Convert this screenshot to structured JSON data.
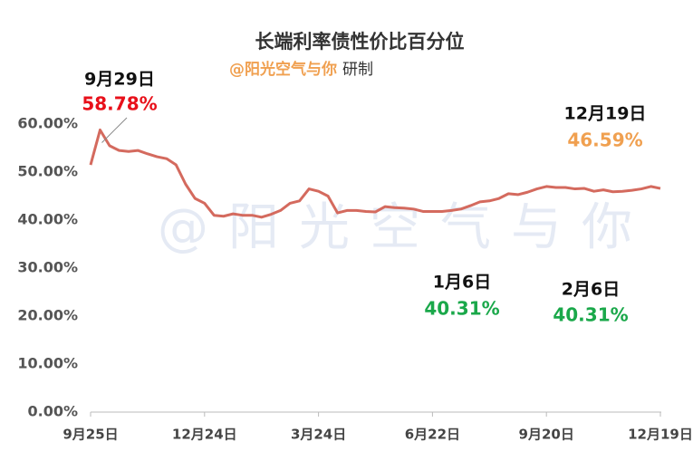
{
  "chart_data": {
    "type": "line",
    "title": "长端利率债性价比百分位",
    "subtitle": "@阳光空气与你",
    "subtitle_suffix": "研制",
    "watermark": "@阳光空气与你",
    "categories": [
      "9月25日",
      null,
      null,
      null,
      null,
      null,
      null,
      null,
      null,
      null,
      null,
      null,
      "12月24日",
      null,
      null,
      null,
      null,
      null,
      null,
      null,
      null,
      null,
      null,
      null,
      "3月24日",
      null,
      null,
      null,
      null,
      null,
      null,
      null,
      null,
      null,
      null,
      null,
      "6月22日",
      null,
      null,
      null,
      null,
      null,
      null,
      null,
      null,
      null,
      null,
      null,
      "9月20日",
      null,
      null,
      null,
      null,
      null,
      null,
      null,
      null,
      null,
      null,
      null,
      "12月19日"
    ],
    "series": [
      {
        "name": "长端利率债性价比百分位",
        "color": "#d46a5e",
        "values": [
          51.5,
          58.78,
          55.5,
          54.5,
          54.3,
          54.5,
          53.8,
          53.2,
          52.8,
          51.5,
          47.5,
          44.5,
          43.5,
          41,
          40.8,
          41.3,
          41,
          41,
          40.6,
          41.2,
          42,
          43.5,
          44,
          46.5,
          46,
          45,
          41.5,
          42,
          42,
          41.8,
          41.7,
          42.8,
          42.6,
          42.5,
          42.3,
          41.8,
          41.8,
          41.8,
          42,
          42.3,
          43,
          43.8,
          44,
          44.5,
          45.5,
          45.3,
          45.8,
          46.5,
          47,
          46.8,
          46.8,
          46.5,
          46.6,
          46,
          46.3,
          45.9,
          46,
          46.2,
          46.5,
          47,
          46.59
        ]
      }
    ],
    "ylim": [
      0,
      60
    ],
    "yticks": [
      {
        "value": 0,
        "label": "0.00%"
      },
      {
        "value": 10,
        "label": "10.00%"
      },
      {
        "value": 20,
        "label": "20.00%"
      },
      {
        "value": 30,
        "label": "30.00%"
      },
      {
        "value": 40,
        "label": "40.00%"
      },
      {
        "value": 50,
        "label": "50.00%"
      },
      {
        "value": 60,
        "label": "60.00%"
      }
    ],
    "annotations": [
      {
        "date": "9月29日",
        "text": "58.78%",
        "color": "#e8101a"
      },
      {
        "date": "12月19日",
        "text": "46.59%",
        "color": "#f0a050"
      },
      {
        "date": "1月6日",
        "text": "40.31%",
        "color": "#1aa84a"
      },
      {
        "date": "2月6日",
        "text": "40.31%",
        "color": "#1aa84a"
      }
    ]
  }
}
